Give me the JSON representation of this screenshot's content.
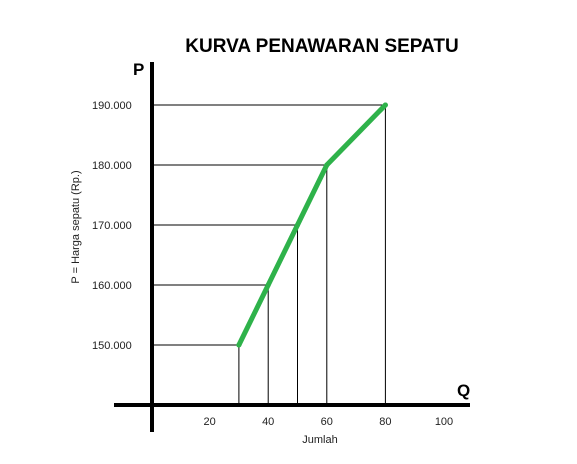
{
  "chart_data": {
    "type": "line",
    "title": "KURVA PENAWARAN SEPATU",
    "y_axis_letter": "P",
    "x_axis_letter": "Q",
    "ylabel": "P = Harga sepatu (Rp.)",
    "xlabel": "Jumlah",
    "x_ticks": [
      "20",
      "40",
      "60",
      "80",
      "100"
    ],
    "y_ticks": [
      "150.000",
      "160.000",
      "170.000",
      "180.000",
      "190.000"
    ],
    "x": [
      30,
      40,
      50,
      60,
      80
    ],
    "y": [
      150000,
      160000,
      170000,
      180000,
      190000
    ],
    "series_color": "#2eb24a",
    "axis_color": "#000000",
    "guide_color": "#000000"
  }
}
